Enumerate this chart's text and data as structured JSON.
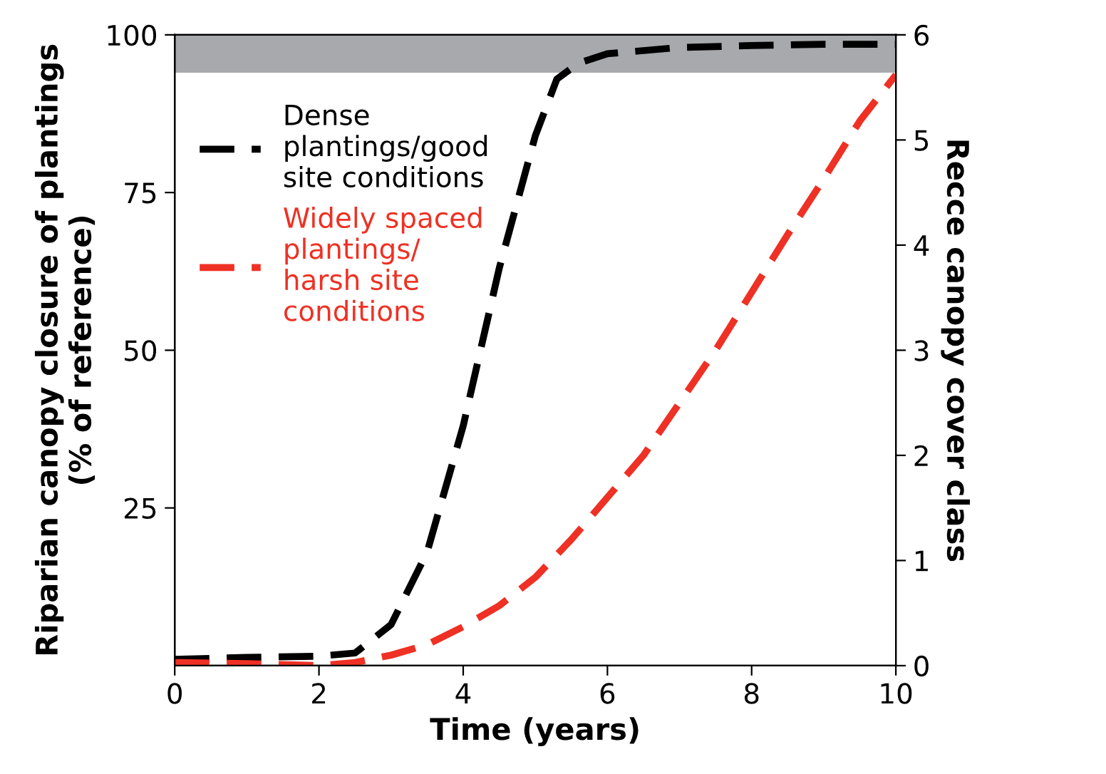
{
  "chart_data": {
    "type": "line",
    "xlabel": "Time (years)",
    "ylabel": "Riparian canopy closure of plantings\n(% of reference)",
    "y2label": "Recce canopy cover class",
    "x": [
      0,
      1,
      2,
      2.5,
      3,
      3.5,
      4,
      4.5,
      5,
      5.3,
      5.6,
      6,
      7,
      8,
      9,
      10
    ],
    "series": [
      {
        "name": "Dense\nplantings/good\nsite conditions",
        "color": "#000000",
        "values": [
          1,
          1.3,
          1.5,
          2,
          6.5,
          18,
          38,
          63,
          84,
          93,
          95.5,
          97,
          98,
          98.3,
          98.5,
          98.5
        ]
      },
      {
        "name": "Widely spaced\nplantings/\nharsh site\nconditions",
        "color": "#ee3124",
        "axis": "y2",
        "x": [
          0,
          1,
          2,
          2.5,
          3,
          3.5,
          4,
          4.5,
          5,
          5.5,
          6,
          6.5,
          7,
          7.5,
          8,
          8.5,
          9,
          9.5,
          10
        ],
        "values": [
          0.03,
          0.02,
          0.0,
          0.03,
          0.1,
          0.2,
          0.37,
          0.57,
          0.84,
          1.2,
          1.6,
          2.0,
          2.5,
          3.0,
          3.55,
          4.1,
          4.63,
          5.18,
          5.62
        ]
      }
    ],
    "xlim": [
      0,
      10
    ],
    "xticks": [
      0,
      2,
      4,
      6,
      8,
      10
    ],
    "ylim": [
      0,
      100
    ],
    "yticks": [
      25,
      50,
      75,
      100
    ],
    "y2lim": [
      0,
      6
    ],
    "y2ticks": [
      0,
      1,
      2,
      3,
      4,
      5,
      6
    ],
    "bands": [
      {
        "axis": "y",
        "from": 94,
        "to": 100,
        "color": "#a7a9ac"
      }
    ],
    "line_style": "dashed",
    "marker": "none",
    "grid": false,
    "legend": "top left"
  }
}
